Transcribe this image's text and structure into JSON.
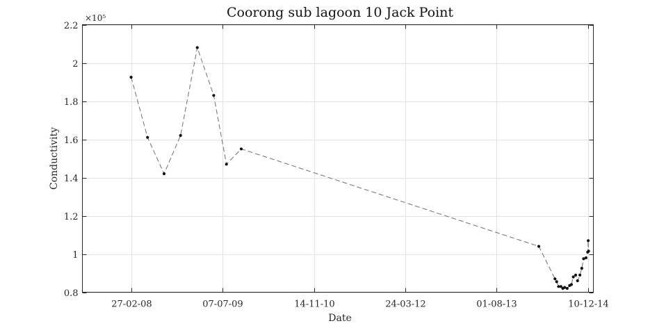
{
  "chart_data": {
    "type": "line",
    "title": "Coorong sub lagoon 10 Jack Point",
    "xlabel": "Date",
    "ylabel": "Conductivity",
    "y_exponent_label": "×10⁵",
    "x_tick_labels": [
      "27-02-08",
      "07-07-09",
      "14-11-10",
      "24-03-12",
      "01-08-13",
      "10-12-14"
    ],
    "x_ticks": [
      "2008-02-27",
      "2009-07-07",
      "2010-11-14",
      "2012-03-24",
      "2013-08-01",
      "2014-12-10"
    ],
    "xlim": [
      "2007-06-08",
      "2015-01-07"
    ],
    "y_tick_labels": [
      "0.8",
      "1",
      "1.2",
      "1.4",
      "1.6",
      "1.8",
      "2",
      "2.2"
    ],
    "y_ticks": [
      80000,
      100000,
      120000,
      140000,
      160000,
      180000,
      200000,
      220000
    ],
    "ylim": [
      80000,
      220000
    ],
    "grid": true,
    "line_style": "dashed",
    "line_color": "#7a7a7a",
    "marker_color": "#111111",
    "series": [
      {
        "x": [
          "2008-02-27",
          "2008-05-26",
          "2008-08-24",
          "2008-11-21",
          "2009-02-20",
          "2009-05-20",
          "2009-07-28",
          "2009-10-16",
          "2014-03-17",
          "2014-06-13",
          "2014-06-22",
          "2014-07-02",
          "2014-07-15",
          "2014-07-25",
          "2014-08-04",
          "2014-08-18",
          "2014-08-31",
          "2014-09-10",
          "2014-09-20",
          "2014-10-03",
          "2014-10-13",
          "2014-10-26",
          "2014-11-05",
          "2014-11-15",
          "2014-11-28",
          "2014-12-07",
          "2014-12-10",
          "2014-12-12"
        ],
        "y": [
          192500,
          161000,
          142000,
          162000,
          208000,
          183000,
          147000,
          155000,
          104000,
          87000,
          85500,
          83000,
          83000,
          82000,
          82500,
          82000,
          83500,
          84000,
          88000,
          89000,
          86000,
          89000,
          92500,
          97500,
          98000,
          101000,
          107000,
          101500
        ]
      }
    ]
  }
}
